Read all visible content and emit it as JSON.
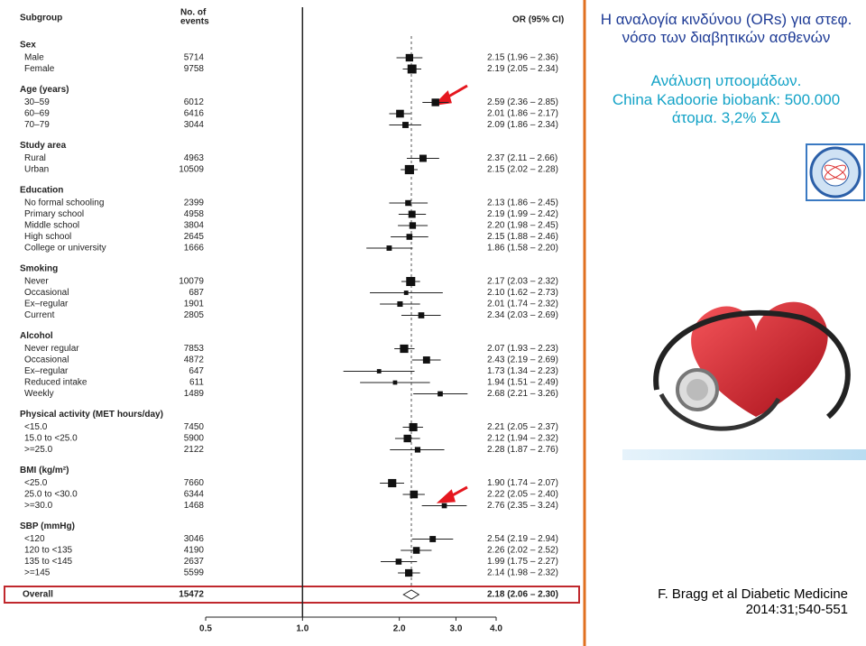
{
  "chart_data": {
    "type": "forest",
    "columns": {
      "subgroup": "Subgroup",
      "events": [
        "No. of",
        "events"
      ],
      "ci": "OR (95% CI)"
    },
    "xlim": [
      0.5,
      4.0
    ],
    "log_scale": true,
    "xticks": [
      0.5,
      {
        "value": 1.0,
        "label": "1.0"
      },
      {
        "value": 2.0,
        "label": "2.0"
      },
      {
        "value": 3.0,
        "label": "3.0"
      },
      {
        "value": 4.0,
        "label": "4.0"
      }
    ],
    "groups": [
      {
        "name": "Sex",
        "rows": [
          {
            "label": "Male",
            "events": 5714,
            "or": 2.15,
            "lo": 1.96,
            "hi": 2.36,
            "ci_label": "2.15 (1.96 – 2.36)"
          },
          {
            "label": "Female",
            "events": 9758,
            "or": 2.19,
            "lo": 2.05,
            "hi": 2.34,
            "ci_label": "2.19 (2.05 – 2.34)"
          }
        ]
      },
      {
        "name": "Age (years)",
        "rows": [
          {
            "label": "30–59",
            "events": 6012,
            "or": 2.59,
            "lo": 2.36,
            "hi": 2.85,
            "ci_label": "2.59 (2.36 – 2.85)"
          },
          {
            "label": "60–69",
            "events": 6416,
            "or": 2.01,
            "lo": 1.86,
            "hi": 2.17,
            "ci_label": "2.01 (1.86 – 2.17)"
          },
          {
            "label": "70–79",
            "events": 3044,
            "or": 2.09,
            "lo": 1.86,
            "hi": 2.34,
            "ci_label": "2.09 (1.86 – 2.34)"
          }
        ]
      },
      {
        "name": "Study area",
        "rows": [
          {
            "label": "Rural",
            "events": 4963,
            "or": 2.37,
            "lo": 2.11,
            "hi": 2.66,
            "ci_label": "2.37 (2.11 – 2.66)"
          },
          {
            "label": "Urban",
            "events": 10509,
            "or": 2.15,
            "lo": 2.02,
            "hi": 2.28,
            "ci_label": "2.15 (2.02 – 2.28)"
          }
        ]
      },
      {
        "name": "Education",
        "rows": [
          {
            "label": "No formal schooling",
            "events": 2399,
            "or": 2.13,
            "lo": 1.86,
            "hi": 2.45,
            "ci_label": "2.13 (1.86 – 2.45)"
          },
          {
            "label": "Primary school",
            "events": 4958,
            "or": 2.19,
            "lo": 1.99,
            "hi": 2.42,
            "ci_label": "2.19 (1.99 – 2.42)"
          },
          {
            "label": "Middle school",
            "events": 3804,
            "or": 2.2,
            "lo": 1.98,
            "hi": 2.45,
            "ci_label": "2.20 (1.98 – 2.45)"
          },
          {
            "label": "High school",
            "events": 2645,
            "or": 2.15,
            "lo": 1.88,
            "hi": 2.46,
            "ci_label": "2.15 (1.88 – 2.46)"
          },
          {
            "label": "College or university",
            "events": 1666,
            "or": 1.86,
            "lo": 1.58,
            "hi": 2.2,
            "ci_label": "1.86 (1.58 – 2.20)"
          }
        ]
      },
      {
        "name": "Smoking",
        "rows": [
          {
            "label": "Never",
            "events": 10079,
            "or": 2.17,
            "lo": 2.03,
            "hi": 2.32,
            "ci_label": "2.17 (2.03 – 2.32)"
          },
          {
            "label": "Occasional",
            "events": 687,
            "or": 2.1,
            "lo": 1.62,
            "hi": 2.73,
            "ci_label": "2.10 (1.62 – 2.73)"
          },
          {
            "label": "Ex–regular",
            "events": 1901,
            "or": 2.01,
            "lo": 1.74,
            "hi": 2.32,
            "ci_label": "2.01 (1.74 – 2.32)"
          },
          {
            "label": "Current",
            "events": 2805,
            "or": 2.34,
            "lo": 2.03,
            "hi": 2.69,
            "ci_label": "2.34 (2.03 – 2.69)"
          }
        ]
      },
      {
        "name": "Alcohol",
        "rows": [
          {
            "label": "Never regular",
            "events": 7853,
            "or": 2.07,
            "lo": 1.93,
            "hi": 2.23,
            "ci_label": "2.07 (1.93 – 2.23)"
          },
          {
            "label": "Occasional",
            "events": 4872,
            "or": 2.43,
            "lo": 2.19,
            "hi": 2.69,
            "ci_label": "2.43 (2.19 – 2.69)"
          },
          {
            "label": "Ex–regular",
            "events": 647,
            "or": 1.73,
            "lo": 1.34,
            "hi": 2.23,
            "ci_label": "1.73 (1.34 – 2.23)"
          },
          {
            "label": "Reduced intake",
            "events": 611,
            "or": 1.94,
            "lo": 1.51,
            "hi": 2.49,
            "ci_label": "1.94 (1.51 – 2.49)"
          },
          {
            "label": "Weekly",
            "events": 1489,
            "or": 2.68,
            "lo": 2.21,
            "hi": 3.26,
            "ci_label": "2.68 (2.21 – 3.26)"
          }
        ]
      },
      {
        "name": "Physical activity (MET hours/day)",
        "rows": [
          {
            "label": "<15.0",
            "events": 7450,
            "or": 2.21,
            "lo": 2.05,
            "hi": 2.37,
            "ci_label": "2.21 (2.05 – 2.37)"
          },
          {
            "label": "15.0 to <25.0",
            "events": 5900,
            "or": 2.12,
            "lo": 1.94,
            "hi": 2.32,
            "ci_label": "2.12 (1.94 – 2.32)"
          },
          {
            "label": ">=25.0",
            "events": 2122,
            "or": 2.28,
            "lo": 1.87,
            "hi": 2.76,
            "ci_label": "2.28 (1.87 – 2.76)"
          }
        ]
      },
      {
        "name": "BMI (kg/m²)",
        "rows": [
          {
            "label": "<25.0",
            "events": 7660,
            "or": 1.9,
            "lo": 1.74,
            "hi": 2.07,
            "ci_label": "1.90 (1.74 – 2.07)"
          },
          {
            "label": "25.0 to <30.0",
            "events": 6344,
            "or": 2.22,
            "lo": 2.05,
            "hi": 2.4,
            "ci_label": "2.22 (2.05 – 2.40)"
          },
          {
            "label": ">=30.0",
            "events": 1468,
            "or": 2.76,
            "lo": 2.35,
            "hi": 3.24,
            "ci_label": "2.76 (2.35 – 3.24)"
          }
        ]
      },
      {
        "name": "SBP (mmHg)",
        "rows": [
          {
            "label": "<120",
            "events": 3046,
            "or": 2.54,
            "lo": 2.19,
            "hi": 2.94,
            "ci_label": "2.54 (2.19 – 2.94)"
          },
          {
            "label": "120 to <135",
            "events": 4190,
            "or": 2.26,
            "lo": 2.02,
            "hi": 2.52,
            "ci_label": "2.26 (2.02 – 2.52)"
          },
          {
            "label": "135 to <145",
            "events": 2637,
            "or": 1.99,
            "lo": 1.75,
            "hi": 2.27,
            "ci_label": "1.99 (1.75 – 2.27)"
          },
          {
            "label": ">=145",
            "events": 5599,
            "or": 2.14,
            "lo": 1.98,
            "hi": 2.32,
            "ci_label": "2.14 (1.98 – 2.32)"
          }
        ]
      }
    ],
    "overall": {
      "label": "Overall",
      "events": 15472,
      "or": 2.18,
      "lo": 2.06,
      "hi": 2.3,
      "ci_label": "2.18 (2.06 – 2.30)"
    }
  },
  "slide": {
    "title": "Η αναλογία κινδύνου (ORs) για στεφ. νόσο των διαβητικών ασθενών",
    "subtitle": "Ανάλυση υποομάδων.",
    "study": "China Kadoorie biobank: 500.000 άτομα. 3,2% ΣΔ",
    "citation": [
      "F. Bragg et al Diabetic Medicine",
      "2014:31;540-551"
    ]
  }
}
